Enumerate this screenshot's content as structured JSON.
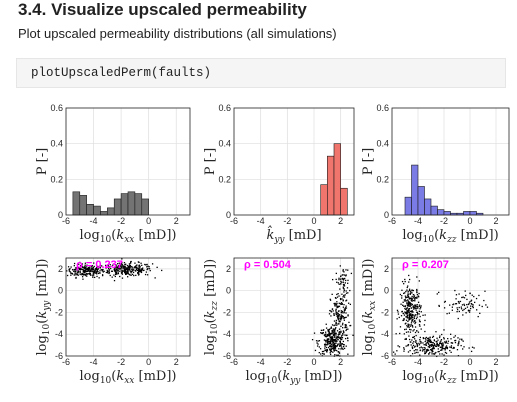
{
  "notebook": {
    "section_title": "3.4. Visualize upscaled permeability",
    "description": "Plot upscaled permeability distributions (all simulations)",
    "code": "plotUpscaledPerm(faults)"
  },
  "colors": {
    "kxx_bars": "#737373",
    "kyy_bars": "#f0766d",
    "kzz_bars": "#7b7be6",
    "scatter_points": "#000000",
    "rho_text": "#ff00ff"
  },
  "chart_data": [
    {
      "id": "hist_kxx",
      "type": "bar",
      "ylabel": "P [-]",
      "xlabel_tex": "log10(kxx [mD])",
      "xlim": [
        -6,
        3
      ],
      "ylim": [
        0,
        0.6
      ],
      "xticks": [
        -6,
        -4,
        -2,
        0,
        2
      ],
      "yticks": [
        0,
        0.2,
        0.4,
        0.6
      ],
      "bin_edges": [
        -5.5,
        -5.0,
        -4.5,
        -4.0,
        -3.5,
        -3.0,
        -2.5,
        -2.0,
        -1.5,
        -1.0,
        -0.5,
        0.0
      ],
      "values": [
        0.13,
        0.11,
        0.06,
        0.05,
        0.02,
        0.04,
        0.09,
        0.12,
        0.13,
        0.12,
        0.09
      ]
    },
    {
      "id": "hist_kyy",
      "type": "bar",
      "ylabel": "P [-]",
      "xlabel_tex": "k̂yy [mD]",
      "xlim": [
        -6,
        3
      ],
      "ylim": [
        0,
        0.6
      ],
      "xticks": [
        -6,
        -4,
        -2,
        0,
        2
      ],
      "yticks": [
        0,
        0.2,
        0.4,
        0.6
      ],
      "bin_edges": [
        0.5,
        1.0,
        1.5,
        2.0,
        2.5
      ],
      "values": [
        0.17,
        0.33,
        0.4,
        0.15
      ]
    },
    {
      "id": "hist_kzz",
      "type": "bar",
      "ylabel": "P [-]",
      "xlabel_tex": "log10(kzz [mD])",
      "xlim": [
        -6,
        3
      ],
      "ylim": [
        0,
        0.6
      ],
      "xticks": [
        -6,
        -4,
        -2,
        0,
        2
      ],
      "yticks": [
        0,
        0.2,
        0.4,
        0.6
      ],
      "bin_edges": [
        -5.0,
        -4.5,
        -4.0,
        -3.5,
        -3.0,
        -2.5,
        -2.0,
        -1.5,
        -1.0,
        -0.5,
        0.0,
        0.5,
        1.0
      ],
      "values": [
        0.1,
        0.28,
        0.16,
        0.09,
        0.05,
        0.03,
        0.02,
        0.01,
        0.01,
        0.02,
        0.02,
        0.01
      ]
    },
    {
      "id": "scatter_kxx_kyy",
      "type": "scatter",
      "xlabel_tex": "log10(kxx [mD])",
      "ylabel_tex": "log10(kyy [mD])",
      "annotation": "ρ = 0.237",
      "xlim": [
        -6,
        3
      ],
      "ylim": [
        -6,
        3
      ],
      "xticks": [
        -6,
        -4,
        -2,
        0,
        2
      ],
      "yticks": [
        -6,
        -4,
        -2,
        0,
        2
      ],
      "clusters": [
        {
          "cx": -4.6,
          "cy": 1.9,
          "sx": 0.7,
          "sy": 0.3,
          "n": 220
        },
        {
          "cx": -1.6,
          "cy": 2.0,
          "sx": 0.9,
          "sy": 0.3,
          "n": 260
        }
      ]
    },
    {
      "id": "scatter_kyy_kzz",
      "type": "scatter",
      "xlabel_tex": "log10(kyy [mD])",
      "ylabel_tex": "log10(kzz [mD])",
      "annotation": "ρ = 0.504",
      "xlim": [
        -6,
        3
      ],
      "ylim": [
        -6,
        3
      ],
      "xticks": [
        -6,
        -4,
        -2,
        0,
        2
      ],
      "yticks": [
        -6,
        -4,
        -2,
        0,
        2
      ],
      "clusters": [
        {
          "cx": 1.3,
          "cy": -4.6,
          "sx": 0.5,
          "sy": 0.7,
          "n": 300
        },
        {
          "cx": 1.9,
          "cy": -2.2,
          "sx": 0.35,
          "sy": 1.0,
          "n": 150
        },
        {
          "cx": 2.1,
          "cy": 0.8,
          "sx": 0.25,
          "sy": 0.7,
          "n": 60
        }
      ]
    },
    {
      "id": "scatter_kzz_kxx",
      "type": "scatter",
      "xlabel_tex": "log10(kzz [mD])",
      "ylabel_tex": "log10(kxx [mD])",
      "annotation": "ρ = 0.207",
      "xlim": [
        -6,
        3
      ],
      "ylim": [
        -6,
        3
      ],
      "xticks": [
        -6,
        -4,
        -2,
        0,
        2
      ],
      "yticks": [
        -6,
        -4,
        -2,
        0,
        2
      ],
      "clusters": [
        {
          "cx": -4.6,
          "cy": -1.8,
          "sx": 0.4,
          "sy": 1.2,
          "n": 300
        },
        {
          "cx": -3.0,
          "cy": -5.0,
          "sx": 1.1,
          "sy": 0.5,
          "n": 260
        },
        {
          "cx": -0.5,
          "cy": -1.2,
          "sx": 0.8,
          "sy": 0.6,
          "n": 80
        }
      ]
    }
  ]
}
